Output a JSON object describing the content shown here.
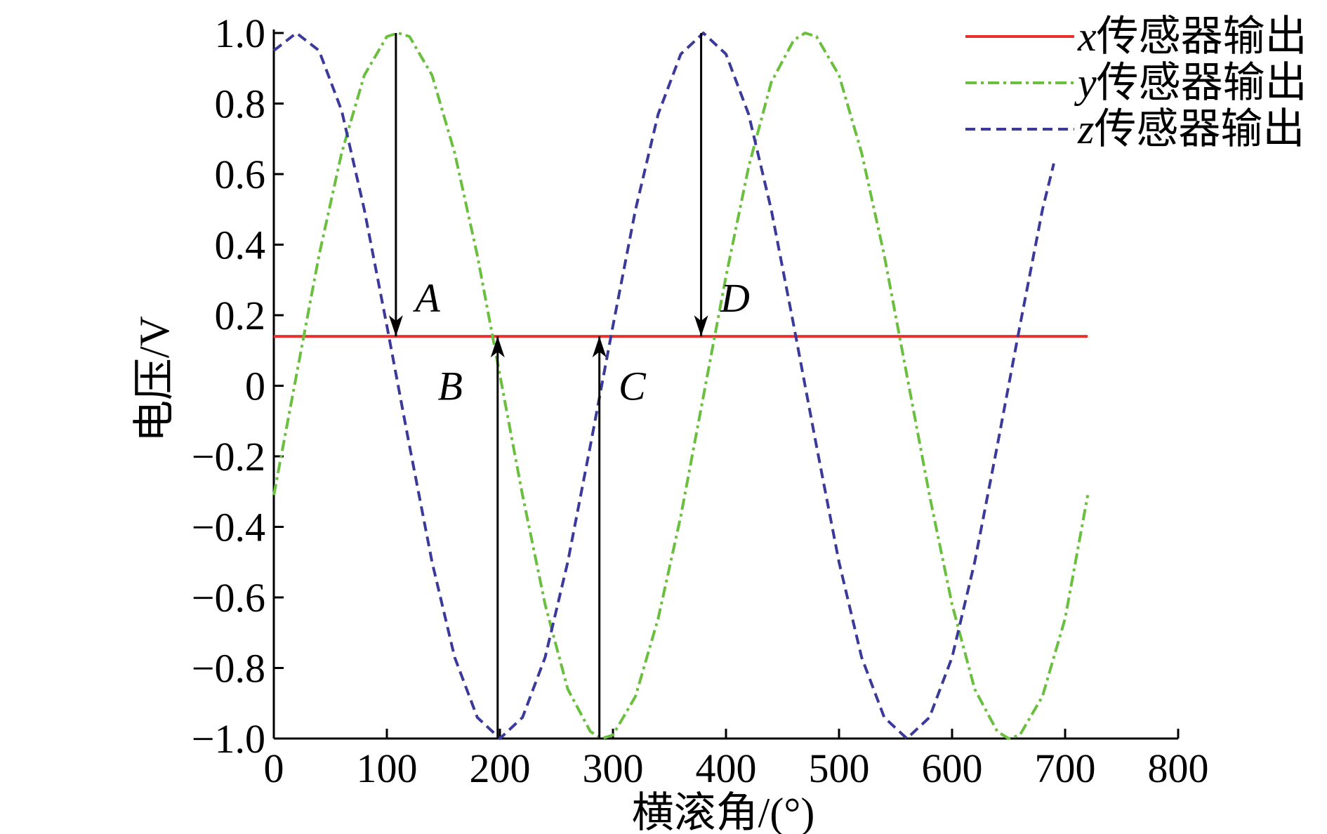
{
  "chart_data": {
    "type": "line",
    "title": "",
    "xlabel": "横滚角/(°)",
    "ylabel": "电压/V",
    "xlim": [
      0,
      800
    ],
    "ylim": [
      -1.0,
      1.0
    ],
    "grid": false,
    "legend_position": "top-right",
    "x_ticks": [
      0,
      100,
      200,
      300,
      400,
      500,
      600,
      700,
      800
    ],
    "x_tick_labels": [
      "0",
      "100",
      "200",
      "300",
      "400",
      "500",
      "600",
      "700",
      "800"
    ],
    "y_ticks": [
      1.0,
      0.8,
      0.6,
      0.4,
      0.2,
      0,
      -0.2,
      -0.4,
      -0.6,
      -0.8,
      -1.0
    ],
    "y_tick_labels": [
      "1.0",
      "0.8",
      "0.6",
      "0.4",
      "0.2",
      "0",
      "−0.2",
      "−0.4",
      "−0.6",
      "−0.8",
      "−1.0"
    ],
    "series": [
      {
        "name": "x传感器输出",
        "var": "x",
        "suffix": "传感器输出",
        "color": "#e8312f",
        "style": "solid",
        "x": [
          0,
          720
        ],
        "y": [
          0.14,
          0.14
        ]
      },
      {
        "name": "y传感器输出",
        "var": "y",
        "suffix": "传感器输出",
        "color": "#6abf3f",
        "style": "dashdot",
        "x": [
          0,
          20,
          40,
          60,
          80,
          100,
          110,
          120,
          140,
          160,
          180,
          200,
          220,
          240,
          260,
          280,
          290,
          300,
          320,
          340,
          360,
          380,
          400,
          420,
          440,
          460,
          470,
          480,
          500,
          520,
          540,
          560,
          580,
          600,
          620,
          640,
          650,
          660,
          680,
          700,
          720
        ],
        "y": [
          -0.31,
          0.03,
          0.37,
          0.66,
          0.88,
          0.99,
          1.0,
          0.99,
          0.88,
          0.66,
          0.37,
          0.03,
          -0.31,
          -0.62,
          -0.86,
          -0.98,
          -1.0,
          -0.99,
          -0.88,
          -0.66,
          -0.37,
          -0.03,
          0.31,
          0.62,
          0.86,
          0.98,
          1.0,
          0.99,
          0.88,
          0.66,
          0.37,
          0.03,
          -0.31,
          -0.62,
          -0.86,
          -0.98,
          -1.0,
          -0.99,
          -0.88,
          -0.66,
          -0.31
        ]
      },
      {
        "name": "z传感器输出",
        "var": "z",
        "suffix": "传感器输出",
        "color": "#3b3a9a",
        "style": "dashed",
        "x": [
          0,
          20,
          40,
          60,
          80,
          100,
          120,
          140,
          160,
          180,
          200,
          220,
          240,
          260,
          280,
          300,
          320,
          340,
          360,
          380,
          400,
          420,
          440,
          460,
          480,
          500,
          520,
          540,
          560,
          580,
          600,
          620,
          640,
          660,
          680,
          690
        ],
        "y": [
          0.95,
          1.0,
          0.95,
          0.78,
          0.5,
          0.17,
          -0.17,
          -0.5,
          -0.77,
          -0.94,
          -1.0,
          -0.94,
          -0.77,
          -0.5,
          -0.17,
          0.17,
          0.5,
          0.77,
          0.94,
          1.0,
          0.94,
          0.77,
          0.5,
          0.17,
          -0.17,
          -0.5,
          -0.77,
          -0.94,
          -1.0,
          -0.94,
          -0.77,
          -0.5,
          -0.17,
          0.17,
          0.5,
          0.63
        ]
      }
    ],
    "annotations": [
      {
        "label": "A",
        "arrow_x": 108,
        "arrow_from_y": 1.0,
        "arrow_to_y": 0.14,
        "label_x": 125,
        "label_y": 0.25
      },
      {
        "label": "B",
        "arrow_x": 198,
        "arrow_from_y": -1.0,
        "arrow_to_y": 0.14,
        "label_x": 145,
        "label_y": 0.0
      },
      {
        "label": "C",
        "arrow_x": 288,
        "arrow_from_y": -1.0,
        "arrow_to_y": 0.14,
        "label_x": 305,
        "label_y": 0.0
      },
      {
        "label": "D",
        "arrow_x": 378,
        "arrow_from_y": 1.0,
        "arrow_to_y": 0.14,
        "label_x": 395,
        "label_y": 0.25
      }
    ]
  }
}
